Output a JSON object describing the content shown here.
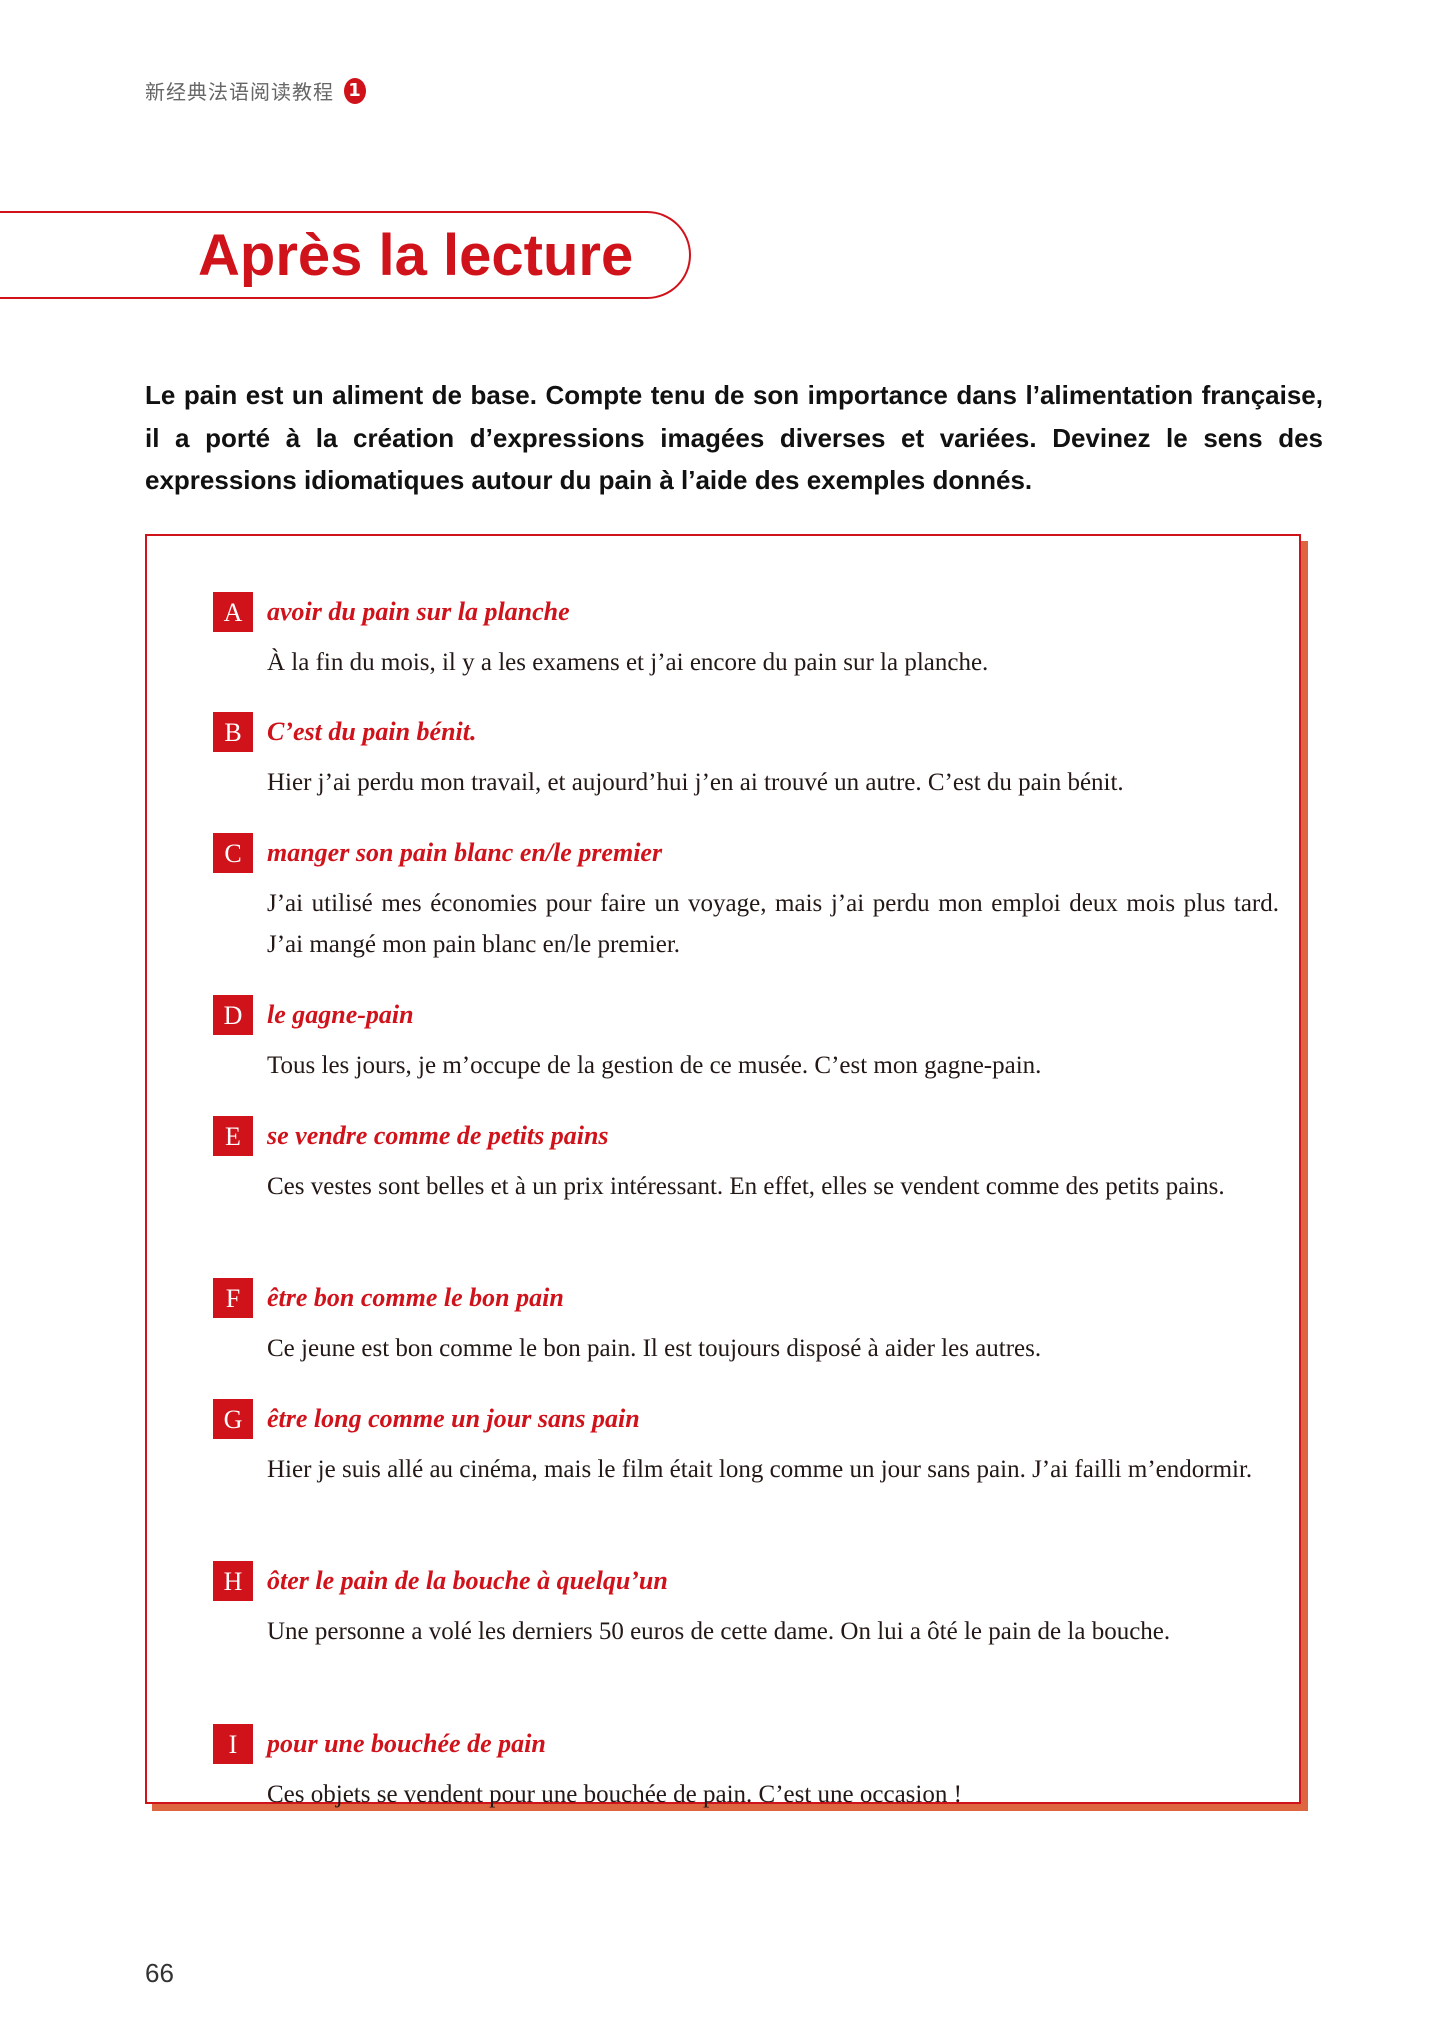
{
  "header": {
    "book_title": "新经典法语阅读教程",
    "volume": "1"
  },
  "section_title": "Après la lecture",
  "intro": "Le pain est un aliment de base. Compte tenu de son importance dans l’alimentation française, il a porté à la création d’expressions imagées diverses et variées. Devinez le sens des expressions idiomatiques autour du pain à l’aide des exemples donnés.",
  "items": [
    {
      "letter": "A",
      "expression": "avoir du pain sur la planche",
      "example": "À la fin du mois, il y a les examens et j’ai encore du pain sur la planche."
    },
    {
      "letter": "B",
      "expression": "C’est du pain bénit.",
      "example": "Hier j’ai perdu mon travail, et aujourd’hui j’en ai trouvé un autre. C’est du pain bénit."
    },
    {
      "letter": "C",
      "expression": "manger son pain blanc en/le premier",
      "example": "J’ai utilisé mes économies pour faire un voyage, mais j’ai perdu mon emploi deux mois plus tard. J’ai mangé mon pain blanc en/le premier."
    },
    {
      "letter": "D",
      "expression": "le gagne-pain",
      "example": "Tous les jours, je m’occupe de la gestion de ce musée. C’est mon gagne-pain."
    },
    {
      "letter": "E",
      "expression": "se vendre comme de petits pains",
      "example": "Ces vestes sont belles et à un prix intéressant. En effet, elles se vendent comme des petits pains."
    },
    {
      "letter": "F",
      "expression": "être bon comme le bon pain",
      "example": "Ce jeune est bon comme le bon pain. Il est toujours disposé à aider les autres."
    },
    {
      "letter": "G",
      "expression": "être long comme un jour sans pain",
      "example": "Hier je suis allé au cinéma, mais le film était long comme un jour sans pain. J’ai failli m’endormir."
    },
    {
      "letter": "H",
      "expression": "ôter le pain de la bouche à quelqu’un",
      "example": "Une personne a volé les derniers 50 euros de cette dame. On lui a ôté le pain de la bouche."
    },
    {
      "letter": "I",
      "expression": "pour une bouchée de pain",
      "example": "Ces objets se vendent pour une bouchée de pain. C’est une occasion !"
    }
  ],
  "page_number": "66",
  "colors": {
    "accent": "#d0121b",
    "shadow": "#dd6640"
  }
}
